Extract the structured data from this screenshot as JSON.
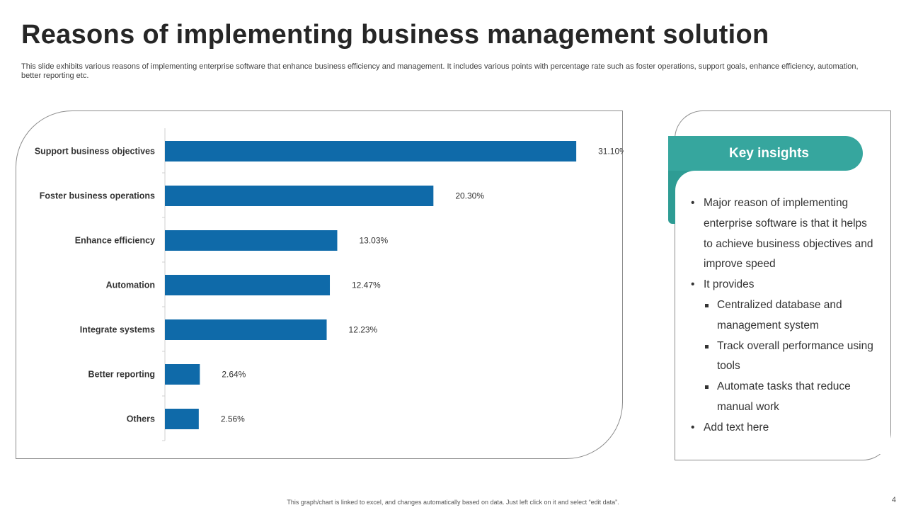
{
  "slide": {
    "title": "Reasons of implementing business management solution",
    "subtitle": "This slide exhibits various reasons of implementing enterprise software that enhance business efficiency and management. It includes various points with percentage rate such as foster operations, support goals, enhance efficiency,  automation, better reporting etc.",
    "footer": "This graph/chart is linked to excel, and changes automatically based on data. Just left click on it and select “edit data”.",
    "page_number": "4"
  },
  "colors": {
    "bar": "#0f6aa9",
    "accent": "#36a69e",
    "border": "#8c8c8c"
  },
  "chart_data": {
    "type": "bar",
    "orientation": "horizontal",
    "categories": [
      "Support business objectives",
      "Foster business operations",
      "Enhance efficiency",
      "Automation",
      "Integrate systems",
      "Better reporting",
      "Others"
    ],
    "values": [
      31.1,
      20.3,
      13.03,
      12.47,
      12.23,
      2.64,
      2.56
    ],
    "data_labels": [
      "31.10%",
      "20.30%",
      "13.03%",
      "12.47%",
      "12.23%",
      "2.64%",
      "2.56%"
    ],
    "xlim": [
      0,
      35
    ],
    "grid": false,
    "legend": "none"
  },
  "insights": {
    "header": "Key insights",
    "items": [
      {
        "type": "bullet",
        "text": "Major reason of implementing enterprise software is that it helps to achieve business objectives and improve speed"
      },
      {
        "type": "bullet",
        "text": "It provides"
      },
      {
        "type": "sub",
        "text": "Centralized database and management system"
      },
      {
        "type": "sub",
        "text": "Track overall performance using tools"
      },
      {
        "type": "sub",
        "text": "Automate tasks that reduce manual work"
      },
      {
        "type": "bullet",
        "text": "Add text here"
      }
    ]
  }
}
